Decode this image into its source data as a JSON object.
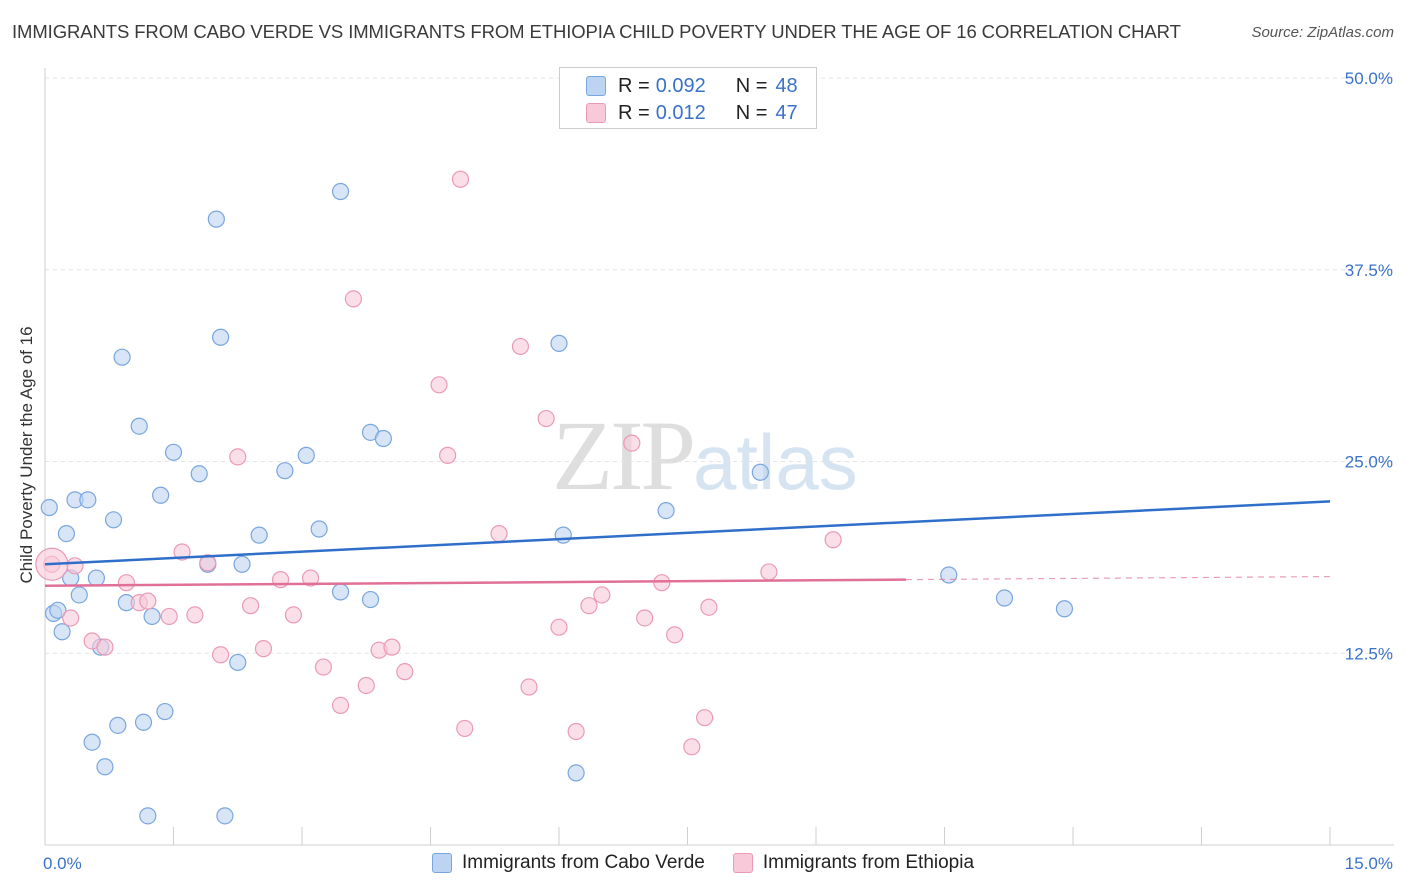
{
  "title": "IMMIGRANTS FROM CABO VERDE VS IMMIGRANTS FROM ETHIOPIA CHILD POVERTY UNDER THE AGE OF 16 CORRELATION CHART",
  "source": "Source: ZipAtlas.com",
  "watermark": {
    "zip": "ZIP",
    "atlas": "atlas"
  },
  "colors": {
    "blue_fill": "#bcd3f2",
    "blue_stroke": "#7aa6de",
    "blue_line": "#2f6fc9",
    "pink_fill": "#f8c9d8",
    "pink_stroke": "#ea9ab6",
    "pink_line": "#e07098",
    "tick_label": "#3a72c8"
  },
  "legend": {
    "rows": [
      {
        "r_label": "R =",
        "r_value": "0.092",
        "n_label": "N =",
        "n_value": "48"
      },
      {
        "r_label": "R =",
        "r_value": "0.012",
        "n_label": "N =",
        "n_value": "47"
      }
    ]
  },
  "chart_data": {
    "type": "scatter",
    "title": "IMMIGRANTS FROM CABO VERDE VS IMMIGRANTS FROM ETHIOPIA CHILD POVERTY UNDER THE AGE OF 16 CORRELATION CHART",
    "xlabel": "",
    "ylabel": "Child Poverty Under the Age of 16",
    "xlim": [
      0,
      15
    ],
    "ylim": [
      0,
      50
    ],
    "x_tick_labels": [
      "0.0%",
      "15.0%"
    ],
    "y_ticks": [
      12.5,
      25.0,
      37.5,
      50.0
    ],
    "y_tick_labels": [
      "12.5%",
      "25.0%",
      "37.5%",
      "50.0%"
    ],
    "grid": true,
    "legend_position": "top-center",
    "series": [
      {
        "name": "Immigrants from Cabo Verde",
        "color": "#bcd3f2",
        "trend": {
          "x": [
            0,
            15
          ],
          "y": [
            18.3,
            22.4
          ]
        },
        "points": [
          [
            0.05,
            22.0
          ],
          [
            0.1,
            15.1
          ],
          [
            0.15,
            15.3
          ],
          [
            0.2,
            13.9
          ],
          [
            0.25,
            20.3
          ],
          [
            0.3,
            17.4
          ],
          [
            0.35,
            22.5
          ],
          [
            0.4,
            16.3
          ],
          [
            0.5,
            22.5
          ],
          [
            0.55,
            6.7
          ],
          [
            0.6,
            17.4
          ],
          [
            0.65,
            12.9
          ],
          [
            0.7,
            5.1
          ],
          [
            0.8,
            21.2
          ],
          [
            0.85,
            7.8
          ],
          [
            0.9,
            31.8
          ],
          [
            0.95,
            15.8
          ],
          [
            1.1,
            27.3
          ],
          [
            1.15,
            8.0
          ],
          [
            1.2,
            1.9
          ],
          [
            1.25,
            14.9
          ],
          [
            1.35,
            22.8
          ],
          [
            1.4,
            8.7
          ],
          [
            1.5,
            25.6
          ],
          [
            1.8,
            24.2
          ],
          [
            1.9,
            18.3
          ],
          [
            2.0,
            40.8
          ],
          [
            2.05,
            33.1
          ],
          [
            2.1,
            1.9
          ],
          [
            2.25,
            11.9
          ],
          [
            2.3,
            18.3
          ],
          [
            2.5,
            20.2
          ],
          [
            2.8,
            24.4
          ],
          [
            3.05,
            25.4
          ],
          [
            3.2,
            20.6
          ],
          [
            3.45,
            42.6
          ],
          [
            3.45,
            16.5
          ],
          [
            3.8,
            16.0
          ],
          [
            3.8,
            26.9
          ],
          [
            3.95,
            26.5
          ],
          [
            6.0,
            32.7
          ],
          [
            6.05,
            20.2
          ],
          [
            6.2,
            4.7
          ],
          [
            7.25,
            21.8
          ],
          [
            8.35,
            24.3
          ],
          [
            10.55,
            17.6
          ],
          [
            11.2,
            16.1
          ],
          [
            11.9,
            15.4
          ]
        ]
      },
      {
        "name": "Immigrants from Ethiopia",
        "color": "#f8c9d8",
        "trend": {
          "x": [
            0,
            10.05
          ],
          "y": [
            16.9,
            17.3
          ],
          "dashed_extension": {
            "x": [
              10.05,
              15
            ],
            "y": [
              17.3,
              17.5
            ]
          }
        },
        "points": [
          [
            0.08,
            18.3
          ],
          [
            0.3,
            14.8
          ],
          [
            0.35,
            18.2
          ],
          [
            0.55,
            13.3
          ],
          [
            0.7,
            12.9
          ],
          [
            0.95,
            17.1
          ],
          [
            1.1,
            15.8
          ],
          [
            1.2,
            15.9
          ],
          [
            1.45,
            14.9
          ],
          [
            1.6,
            19.1
          ],
          [
            1.75,
            15.0
          ],
          [
            1.9,
            18.4
          ],
          [
            2.05,
            12.4
          ],
          [
            2.25,
            25.3
          ],
          [
            2.4,
            15.6
          ],
          [
            2.55,
            12.8
          ],
          [
            2.75,
            17.3
          ],
          [
            2.9,
            15.0
          ],
          [
            3.1,
            17.4
          ],
          [
            3.25,
            11.6
          ],
          [
            3.45,
            9.1
          ],
          [
            3.6,
            35.6
          ],
          [
            3.75,
            10.4
          ],
          [
            3.9,
            12.7
          ],
          [
            4.05,
            12.9
          ],
          [
            4.2,
            11.3
          ],
          [
            4.6,
            30.0
          ],
          [
            4.7,
            25.4
          ],
          [
            4.85,
            43.4
          ],
          [
            4.9,
            7.6
          ],
          [
            5.3,
            20.3
          ],
          [
            5.55,
            32.5
          ],
          [
            5.65,
            10.3
          ],
          [
            5.85,
            27.8
          ],
          [
            6.0,
            14.2
          ],
          [
            6.2,
            7.4
          ],
          [
            6.35,
            15.6
          ],
          [
            6.5,
            16.3
          ],
          [
            6.85,
            26.2
          ],
          [
            7.0,
            14.8
          ],
          [
            7.2,
            17.1
          ],
          [
            7.35,
            13.7
          ],
          [
            7.55,
            6.4
          ],
          [
            7.7,
            8.3
          ],
          [
            7.75,
            15.5
          ],
          [
            8.45,
            17.8
          ],
          [
            9.2,
            19.9
          ]
        ]
      }
    ]
  }
}
